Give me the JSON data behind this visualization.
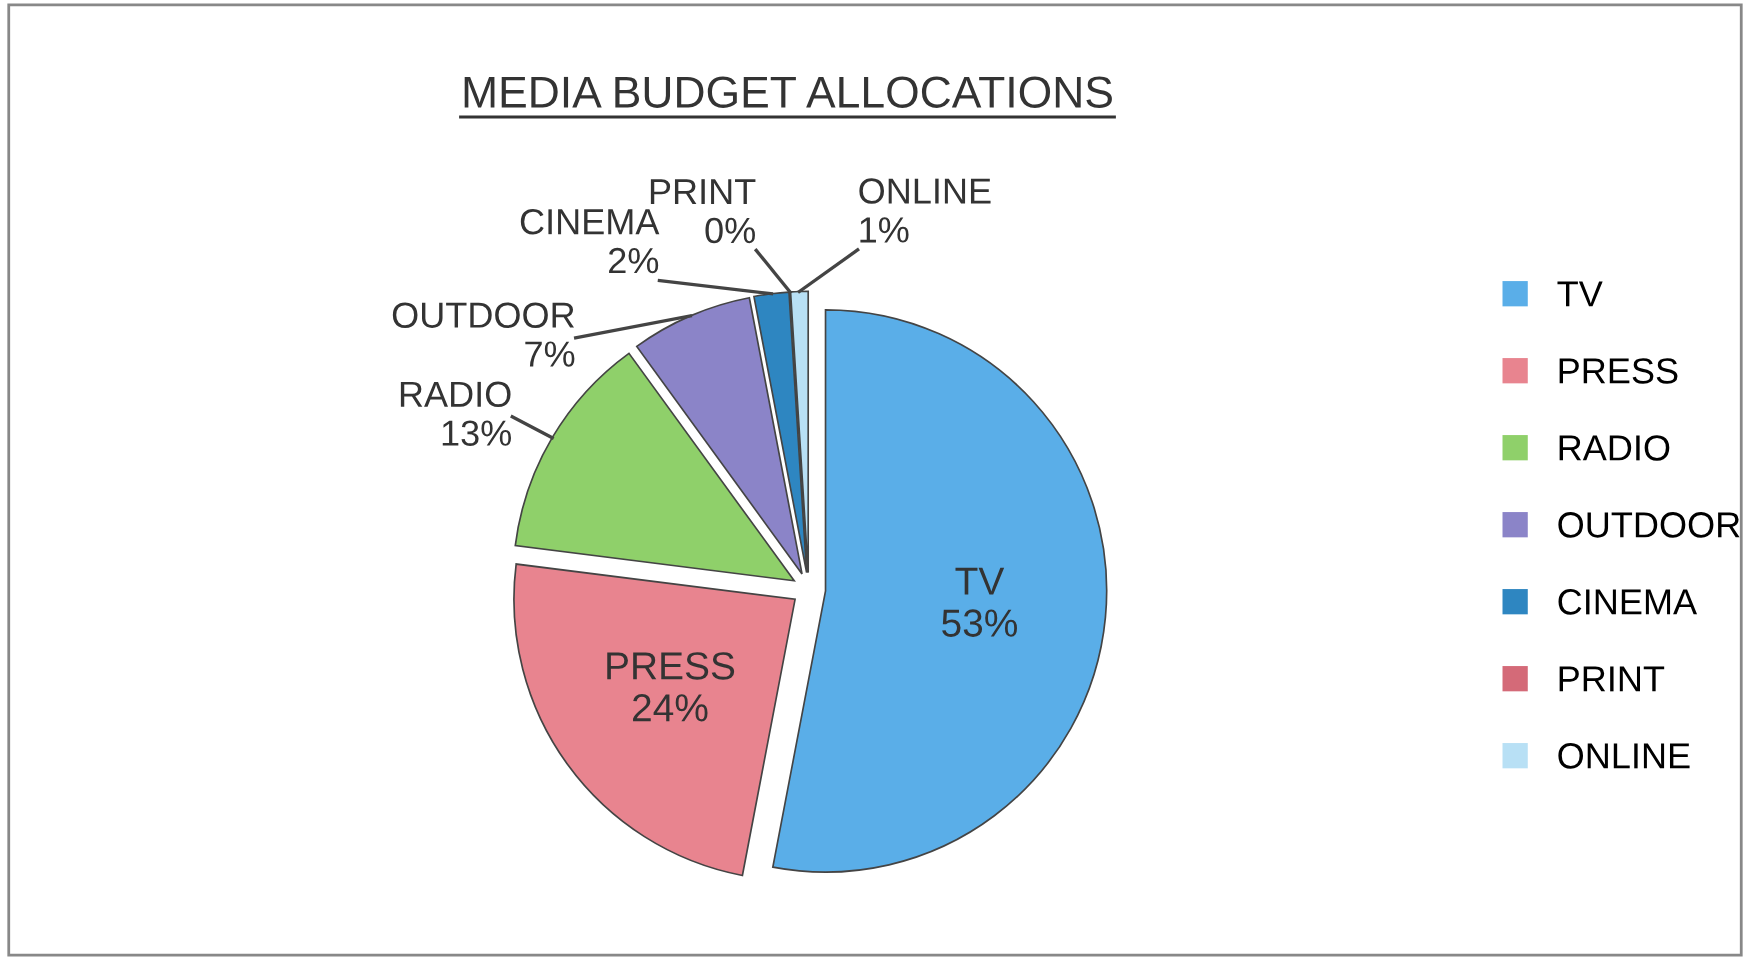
{
  "chart_data": {
    "type": "pie",
    "title": "MEDIA BUDGET ALLOCATIONS",
    "categories": [
      "TV",
      "PRESS",
      "RADIO",
      "OUTDOOR",
      "CINEMA",
      "PRINT",
      "ONLINE"
    ],
    "values": [
      53,
      24,
      13,
      7,
      2,
      0,
      1
    ],
    "value_labels": [
      "53%",
      "24%",
      "13%",
      "7%",
      "2%",
      "0%",
      "1%"
    ],
    "colors": [
      "#5aaee8",
      "#e8848f",
      "#8fd06a",
      "#8b84c8",
      "#2e86c1",
      "#d46a78",
      "#b8e0f5"
    ],
    "legend": "right"
  }
}
